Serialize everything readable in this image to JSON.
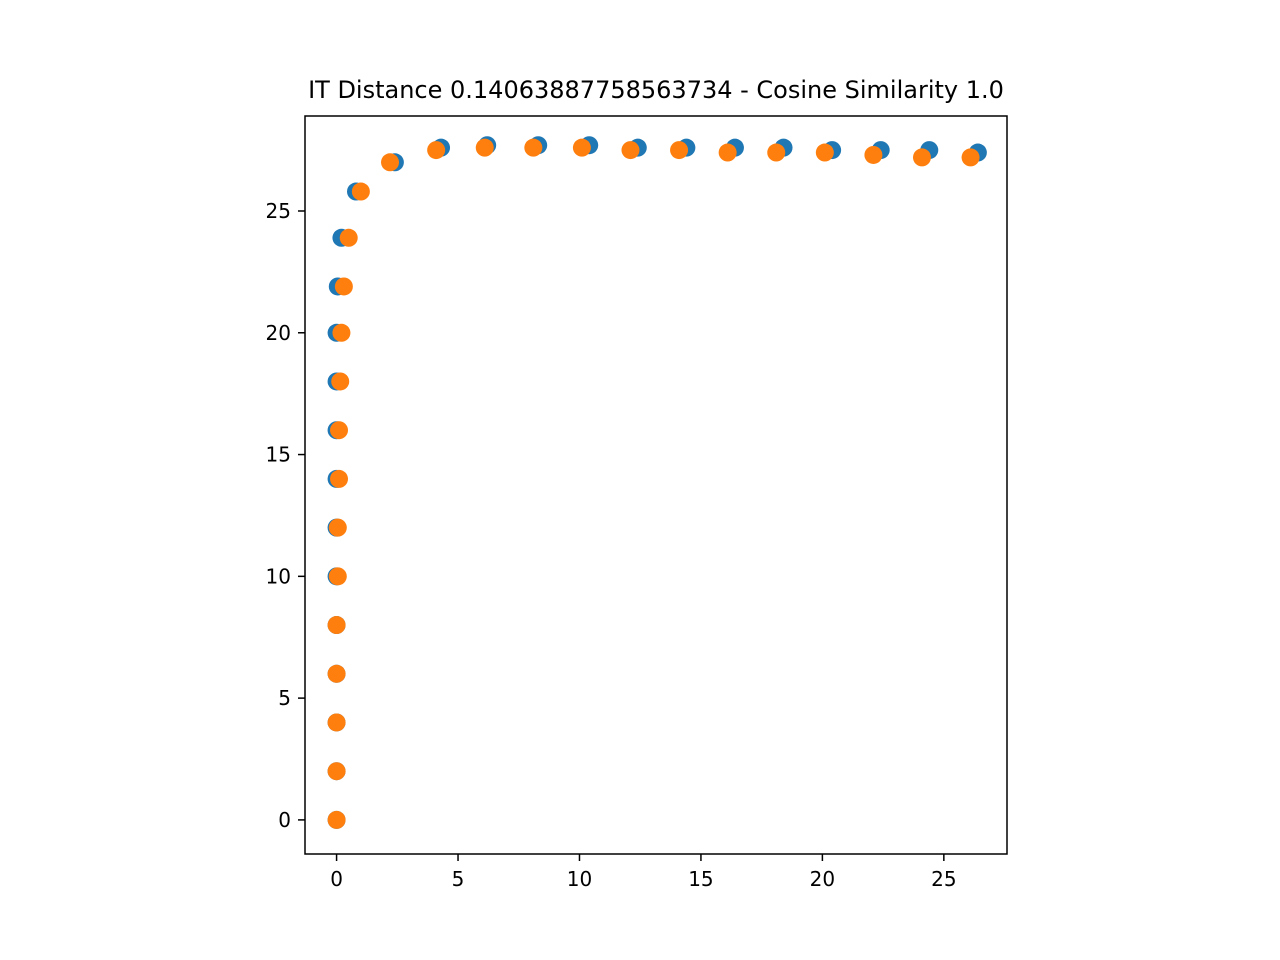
{
  "chart_data": {
    "type": "scatter",
    "title": "IT Distance 0.14063887758563734 - Cosine Similarity 1.0",
    "xlabel": "",
    "ylabel": "",
    "xlim": [
      -1.3,
      27.6
    ],
    "ylim": [
      -1.4,
      28.9
    ],
    "xticks": [
      0,
      5,
      10,
      15,
      20,
      25
    ],
    "yticks": [
      0,
      5,
      10,
      15,
      20,
      25
    ],
    "grid": false,
    "legend": "none",
    "series": [
      {
        "color": "#1f77b4",
        "x": [
          0,
          0,
          0,
          0,
          0,
          0,
          0,
          0,
          0,
          0,
          0,
          0.05,
          0.2,
          0.8,
          2.4,
          4.3,
          6.2,
          8.3,
          10.4,
          12.4,
          14.4,
          16.4,
          18.4,
          20.4,
          22.4,
          24.4,
          26.4
        ],
        "y": [
          0,
          2,
          4,
          6,
          8,
          10,
          12,
          14,
          16,
          18,
          20,
          21.9,
          23.9,
          25.8,
          27.0,
          27.6,
          27.7,
          27.7,
          27.7,
          27.6,
          27.6,
          27.6,
          27.6,
          27.5,
          27.5,
          27.5,
          27.4
        ]
      },
      {
        "color": "#ff7f0e",
        "x": [
          0,
          0,
          0,
          0,
          0,
          0.05,
          0.05,
          0.1,
          0.1,
          0.15,
          0.2,
          0.3,
          0.5,
          1.0,
          2.2,
          4.1,
          6.1,
          8.1,
          10.1,
          12.1,
          14.1,
          16.1,
          18.1,
          20.1,
          22.1,
          24.1,
          26.1
        ],
        "y": [
          0,
          2,
          4,
          6,
          8,
          10,
          12,
          14,
          16,
          18,
          20,
          21.9,
          23.9,
          25.8,
          27.0,
          27.5,
          27.6,
          27.6,
          27.6,
          27.5,
          27.5,
          27.4,
          27.4,
          27.4,
          27.3,
          27.2,
          27.2
        ]
      }
    ]
  }
}
